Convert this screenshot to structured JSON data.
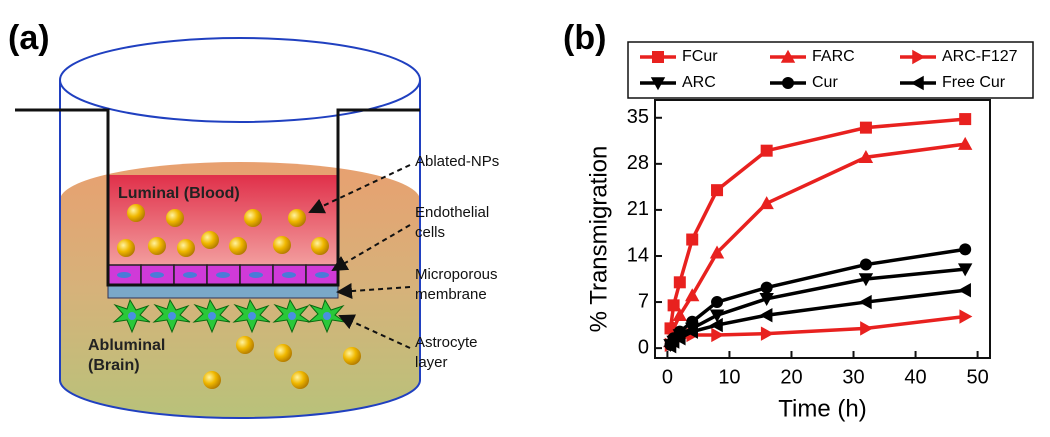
{
  "panel_labels": [
    "(a)",
    "(b)"
  ],
  "diagram": {
    "compartments": [
      "Luminal (Blood)",
      [
        "Abluminal",
        "(Brain)"
      ]
    ],
    "labels": [
      [
        "Ablated-NPs"
      ],
      [
        "Endothelial",
        "cells"
      ],
      [
        "Microporous",
        "membrane"
      ],
      [
        "Astrocyte",
        "layer"
      ]
    ]
  },
  "chart_data": {
    "type": "line",
    "x_label": "Time (h)",
    "y_label": "% Transmigration",
    "x": [
      0.5,
      1,
      2,
      4,
      8,
      16,
      32,
      48
    ],
    "series": [
      {
        "name": "FCur",
        "color": "#e8211f",
        "marker": "square",
        "values": [
          3,
          6.5,
          10,
          16.5,
          24,
          30,
          33.5,
          34.8
        ]
      },
      {
        "name": "FARC",
        "color": "#e8211f",
        "marker": "triangle-up",
        "values": [
          1,
          3,
          5,
          8,
          14.5,
          22,
          29,
          31
        ]
      },
      {
        "name": "ARC-F127",
        "color": "#e8211f",
        "marker": "triangle-right",
        "values": [
          0.5,
          1,
          1.5,
          2,
          2,
          2.2,
          3,
          4.8
        ]
      },
      {
        "name": "ARC",
        "color": "#000000",
        "marker": "triangle-down",
        "values": [
          0.5,
          1,
          2,
          3,
          5,
          7.5,
          10.5,
          12
        ]
      },
      {
        "name": "Cur",
        "color": "#000000",
        "marker": "circle",
        "values": [
          0.5,
          1.5,
          2.5,
          4,
          7,
          9.2,
          12.7,
          15
        ]
      },
      {
        "name": "Free Cur",
        "color": "#000000",
        "marker": "triangle-left",
        "values": [
          0.3,
          1,
          1.5,
          2.5,
          3.5,
          5,
          7,
          8.8
        ]
      }
    ],
    "xlim": [
      -2,
      52
    ],
    "ylim": [
      -1.5,
      37.7
    ],
    "xticks": [
      0,
      10,
      20,
      30,
      40,
      50
    ],
    "yticks": [
      0,
      7,
      14,
      21,
      28,
      35
    ],
    "legend": "top"
  }
}
